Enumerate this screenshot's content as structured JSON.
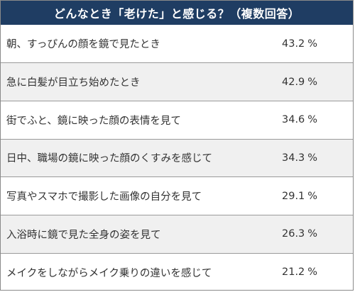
{
  "chart_data": {
    "type": "table",
    "title": "どんなとき「老けた」と感じる？（複数回答）",
    "unit": "%",
    "rows": [
      {
        "label": "朝、すっぴんの顔を鏡で見たとき",
        "value": "43.2"
      },
      {
        "label": "急に白髪が目立ち始めたとき",
        "value": "42.9"
      },
      {
        "label": "街でふと、鏡に映った顔の表情を見て",
        "value": "34.6"
      },
      {
        "label": "日中、職場の鏡に映った顔のくすみを感じて",
        "value": "34.3"
      },
      {
        "label": "写真やスマホで撮影した画像の自分を見て",
        "value": "29.1"
      },
      {
        "label": "入浴時に鏡で見た全身の姿を見て",
        "value": "26.3"
      },
      {
        "label": "メイクをしながらメイク乗りの違いを感じて",
        "value": "21.2"
      }
    ]
  }
}
